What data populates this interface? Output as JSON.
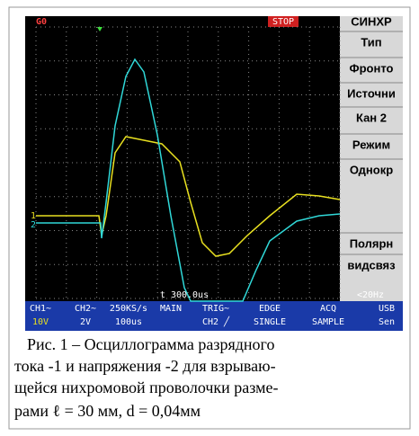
{
  "screen": {
    "top_left": "G0",
    "top_status": "STOP",
    "menu": {
      "title": "СИНХР",
      "items": [
        "Тип",
        "Фронто",
        "Источни",
        "Кан 2",
        "Режим",
        "Однокр",
        "Полярн",
        "видсвяз"
      ]
    },
    "channel_markers": [
      "1",
      "2"
    ],
    "time_marker": "t 300.0us",
    "frequency": "<20Hz",
    "bottom_bar": [
      {
        "top": "CH1~",
        "bottom": "10V"
      },
      {
        "top": "CH2~",
        "bottom": "2V"
      },
      {
        "top": "250KS/s",
        "bottom": "100us"
      },
      {
        "top": "MAIN",
        "bottom": ""
      },
      {
        "top": "TRIG~",
        "bottom": "CH2 ╱"
      },
      {
        "top": "EDGE",
        "bottom": "SINGLE"
      },
      {
        "top": "ACQ",
        "bottom": "SAMPLE"
      },
      {
        "top": "USB",
        "bottom": "Sen"
      }
    ]
  },
  "caption": {
    "lines": [
      "Рис. 1 – Осциллограмма разрядного",
      "тока  -1 и напряжения -2 для взрываю-",
      "щейся нихромовой проволочки  разме-",
      "рами ℓ = 30 мм, d = 0,04мм"
    ]
  }
}
